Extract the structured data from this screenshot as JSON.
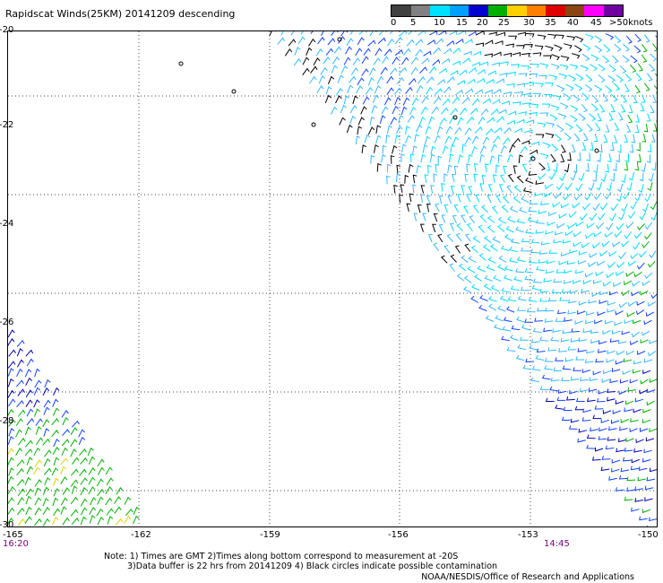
{
  "title": "Rapidscat Winds(25KM) 20141209 descending",
  "legend": {
    "labels": [
      "0",
      "5",
      "10",
      "15",
      "20",
      "25",
      "30",
      "35",
      "40",
      "45",
      ">50knots"
    ],
    "colors": [
      "#404040",
      "#808080",
      "#00e0ff",
      "#00a0ff",
      "#0000d0",
      "#00b000",
      "#ffd000",
      "#ff8000",
      "#e00000",
      "#8b4513",
      "#ff00ff",
      "#7000a0"
    ]
  },
  "axes": {
    "lat_labels": [
      "-20",
      "-22",
      "-24",
      "-26",
      "-28",
      "-30"
    ],
    "lon_labels": [
      "-165",
      "-162",
      "-159",
      "-156",
      "-153",
      "-150"
    ]
  },
  "times": {
    "left": "16:20",
    "right": "14:45"
  },
  "notes": {
    "line1": "Note: 1) Times are GMT 2)Times along bottom correspond to measurement at -20S",
    "line2": "3)Data buffer is 22 hrs from 20141209 4) Black circles indicate possible contamination",
    "credit": "NOAA/NESDIS/Office of Research and Applications"
  }
}
